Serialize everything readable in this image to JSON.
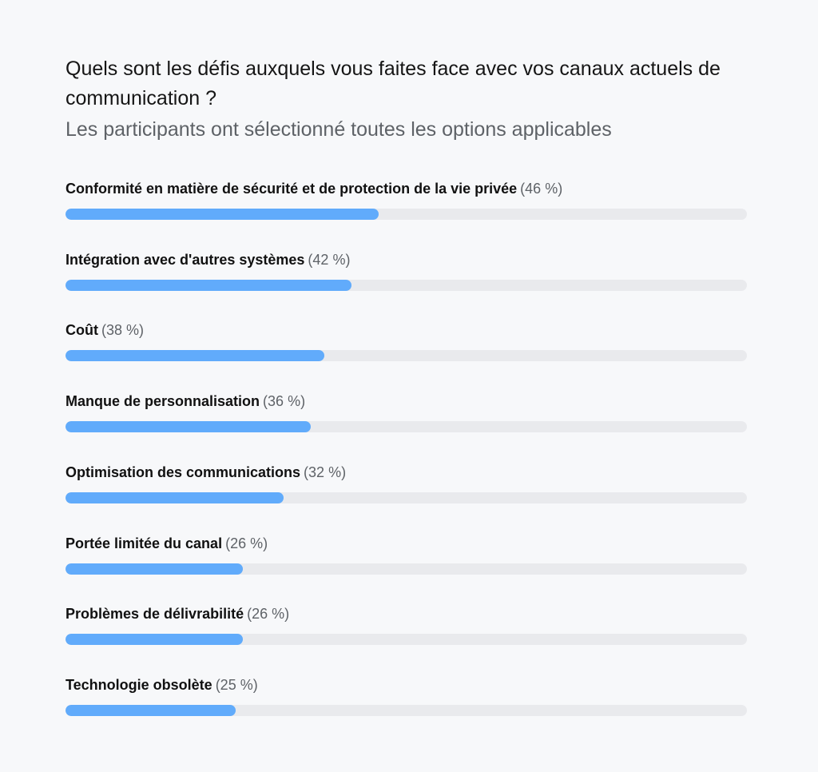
{
  "chart_data": {
    "type": "bar",
    "orientation": "horizontal",
    "title": "Quels sont les défis auxquels vous faites face avec vos canaux actuels de communication ?",
    "subtitle": "Les participants ont sélectionné toutes les options applicables",
    "xlim": [
      0,
      100
    ],
    "unit": "%",
    "colors": {
      "fill": "#61abfb",
      "track": "#e9eaed"
    },
    "categories": [
      "Conformité en matière de sécurité et de protection de la vie privée",
      "Intégration avec d'autres systèmes",
      "Coût",
      "Manque de personnalisation",
      "Optimisation des communications",
      "Portée limitée du canal",
      "Problèmes de délivrabilité",
      "Technologie obsolète"
    ],
    "values": [
      46,
      42,
      38,
      36,
      32,
      26,
      26,
      25
    ],
    "value_labels": [
      "(46 %)",
      "(42 %)",
      "(38 %)",
      "(36 %)",
      "(32 %)",
      "(26 %)",
      "(26 %)",
      "(25 %)"
    ]
  }
}
